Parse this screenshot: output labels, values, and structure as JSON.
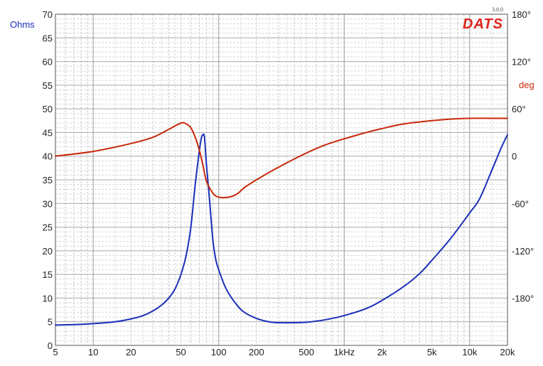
{
  "brand": {
    "logo_text": "DATS",
    "version": "3.0.0",
    "color": "#e0241c"
  },
  "chart_data": {
    "type": "line",
    "x_scale": "log",
    "xlim": [
      5,
      20000
    ],
    "x_ticks": [
      5,
      10,
      20,
      50,
      100,
      200,
      500,
      1000,
      2000,
      5000,
      10000,
      20000
    ],
    "x_tick_labels": [
      "5",
      "10",
      "20",
      "50",
      "100",
      "200",
      "500",
      "1kHz",
      "2k",
      "5k",
      "10k",
      "20k"
    ],
    "left_axis": {
      "label": "Ohms",
      "range": [
        0,
        70
      ],
      "ticks": [
        0,
        5,
        10,
        15,
        20,
        25,
        30,
        35,
        40,
        45,
        50,
        55,
        60,
        65,
        70
      ],
      "color": "#1a2fb8"
    },
    "right_axis": {
      "label": "deg",
      "range": [
        -240,
        180
      ],
      "ticks": [
        180,
        120,
        60,
        0,
        -60,
        -120,
        -180
      ],
      "tick_labels": [
        "180°",
        "120°",
        "60°",
        "0",
        "-60°",
        "-120°",
        "-180°"
      ],
      "color": "#c8280a"
    },
    "grid": true,
    "series": [
      {
        "axis": "left",
        "color": "#1a2fb8",
        "points": [
          [
            5,
            4.3
          ],
          [
            7,
            4.4
          ],
          [
            10,
            4.6
          ],
          [
            15,
            5.0
          ],
          [
            20,
            5.6
          ],
          [
            25,
            6.3
          ],
          [
            30,
            7.3
          ],
          [
            35,
            8.5
          ],
          [
            40,
            10.0
          ],
          [
            45,
            12.0
          ],
          [
            50,
            15.0
          ],
          [
            55,
            19.0
          ],
          [
            60,
            25.0
          ],
          [
            65,
            34.0
          ],
          [
            70,
            41.0
          ],
          [
            73,
            44.0
          ],
          [
            75,
            44.5
          ],
          [
            77,
            44.0
          ],
          [
            80,
            38.0
          ],
          [
            85,
            30.0
          ],
          [
            90,
            22.0
          ],
          [
            95,
            18.0
          ],
          [
            100,
            16.0
          ],
          [
            110,
            13.0
          ],
          [
            120,
            11.0
          ],
          [
            140,
            8.5
          ],
          [
            160,
            7.0
          ],
          [
            200,
            5.7
          ],
          [
            250,
            5.0
          ],
          [
            300,
            4.8
          ],
          [
            400,
            4.8
          ],
          [
            500,
            4.9
          ],
          [
            700,
            5.4
          ],
          [
            1000,
            6.3
          ],
          [
            1500,
            7.8
          ],
          [
            2000,
            9.5
          ],
          [
            3000,
            12.5
          ],
          [
            4000,
            15.2
          ],
          [
            5000,
            18.0
          ],
          [
            7000,
            22.5
          ],
          [
            10000,
            28.0
          ],
          [
            12000,
            31.0
          ],
          [
            15000,
            37.0
          ],
          [
            18000,
            42.0
          ],
          [
            20000,
            44.5
          ]
        ]
      },
      {
        "axis": "right",
        "color": "#c8280a",
        "points": [
          [
            5,
            0
          ],
          [
            10,
            6
          ],
          [
            20,
            16
          ],
          [
            30,
            24
          ],
          [
            40,
            34
          ],
          [
            50,
            42
          ],
          [
            55,
            41
          ],
          [
            60,
            36
          ],
          [
            65,
            24
          ],
          [
            70,
            8
          ],
          [
            75,
            -12
          ],
          [
            80,
            -32
          ],
          [
            90,
            -47
          ],
          [
            100,
            -52
          ],
          [
            120,
            -52
          ],
          [
            140,
            -48
          ],
          [
            160,
            -40
          ],
          [
            200,
            -30
          ],
          [
            300,
            -14
          ],
          [
            500,
            4
          ],
          [
            700,
            14
          ],
          [
            1000,
            22
          ],
          [
            1500,
            30
          ],
          [
            2000,
            35
          ],
          [
            3000,
            41
          ],
          [
            5000,
            45
          ],
          [
            7000,
            47
          ],
          [
            10000,
            48
          ],
          [
            15000,
            48
          ],
          [
            20000,
            48
          ]
        ]
      }
    ]
  }
}
